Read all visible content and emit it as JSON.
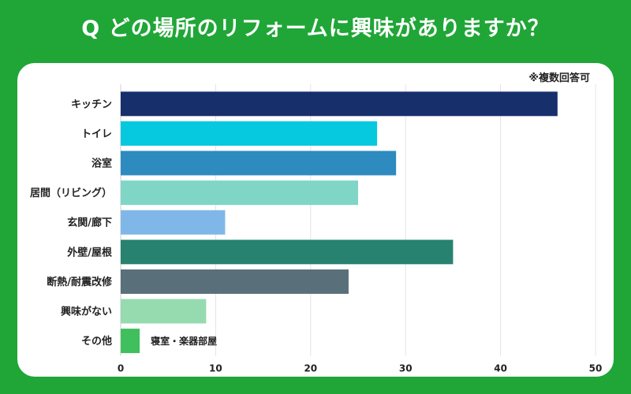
{
  "header": {
    "title": "Q どの場所のリフォームに興味がありますか？"
  },
  "chart_note": "※複数回答可",
  "chart_data": {
    "type": "bar",
    "orientation": "horizontal",
    "title": "Q どの場所のリフォームに興味がありますか？",
    "categories": [
      "キッチン",
      "トイレ",
      "浴室",
      "居間（リビング）",
      "玄関/廊下",
      "外壁/屋根",
      "断熱/耐震改修",
      "興味がない",
      "その他"
    ],
    "values": [
      46,
      27,
      29,
      25,
      11,
      35,
      24,
      9,
      2
    ],
    "colors": [
      "#172f6b",
      "#06c8df",
      "#2d8bbf",
      "#80d6c6",
      "#7fb8e8",
      "#27826f",
      "#59707a",
      "#96dbb0",
      "#3fbf5d"
    ],
    "xlim": [
      0,
      50
    ],
    "xticks": [
      0,
      10,
      20,
      30,
      40,
      50
    ],
    "grid": true,
    "xlabel": "",
    "ylabel": "",
    "annotations": [
      {
        "category": "その他",
        "text": "寝室・楽器部屋"
      }
    ]
  }
}
